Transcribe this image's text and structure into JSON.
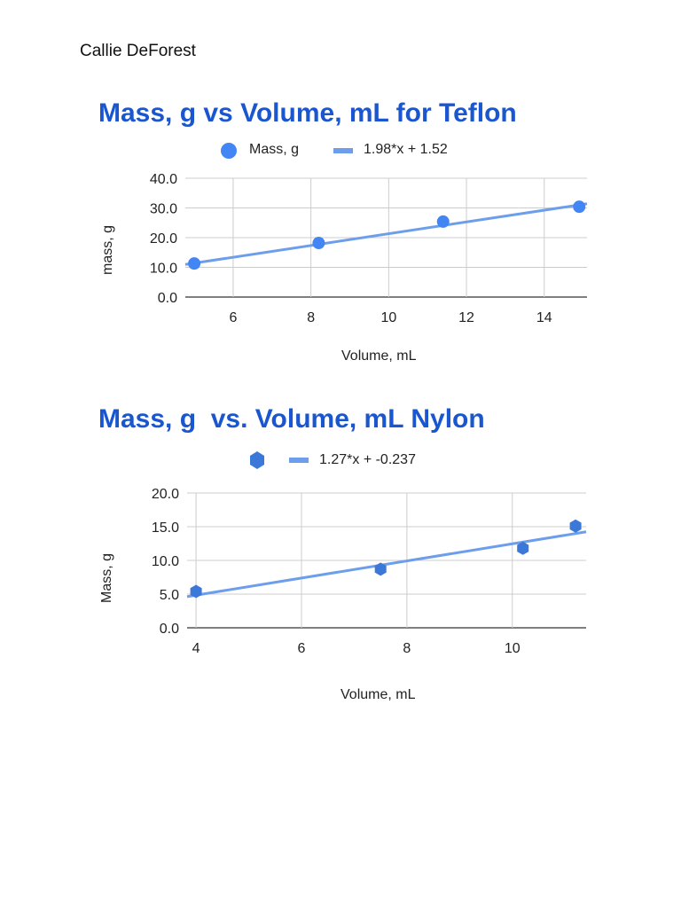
{
  "author": "Callie DeForest",
  "chart_data": [
    {
      "type": "scatter",
      "title": "Mass, g vs Volume, mL for Teflon",
      "xlabel": "Volume, mL",
      "ylabel": "mass, g",
      "legend": {
        "series_label": "Mass, g",
        "trend_label": "1.98*x + 1.52",
        "placement": "top-center"
      },
      "marker": "circle",
      "point_color": "#4285f4",
      "trend_color": "#6d9eeb",
      "x": [
        5.0,
        8.2,
        11.4,
        14.9
      ],
      "y": [
        11.3,
        18.2,
        25.4,
        30.4
      ],
      "trendline": {
        "slope": 1.98,
        "intercept": 1.52
      },
      "xlim": [
        4.77,
        15.1
      ],
      "ylim": [
        0,
        40
      ],
      "xticks": [
        6,
        8,
        10,
        12,
        14
      ],
      "yticks": [
        0,
        10,
        20,
        30,
        40
      ],
      "xtick_labels": [
        "6",
        "8",
        "10",
        "12",
        "14"
      ],
      "ytick_labels": [
        "0.0",
        "10.0",
        "20.0",
        "30.0",
        "40.0"
      ],
      "grid": true
    },
    {
      "type": "scatter",
      "title": "Mass, g  vs. Volume, mL Nylon",
      "xlabel": "Volume, mL",
      "ylabel": "Mass, g",
      "legend": {
        "trend_label": "1.27*x + -0.237",
        "placement": "top-center"
      },
      "marker": "hexagon",
      "point_color": "#3c78d8",
      "trend_color": "#6d9eeb",
      "x": [
        4.0,
        7.5,
        10.2,
        11.2
      ],
      "y": [
        5.4,
        8.7,
        11.8,
        15.1
      ],
      "trendline": {
        "slope": 1.27,
        "intercept": -0.237
      },
      "xlim": [
        3.83,
        11.4
      ],
      "ylim": [
        0,
        20
      ],
      "xticks": [
        4,
        6,
        8,
        10
      ],
      "yticks": [
        0,
        5,
        10,
        15,
        20
      ],
      "xtick_labels": [
        "4",
        "6",
        "8",
        "10"
      ],
      "ytick_labels": [
        "0.0",
        "5.0",
        "10.0",
        "15.0",
        "20.0"
      ],
      "grid": true
    }
  ]
}
